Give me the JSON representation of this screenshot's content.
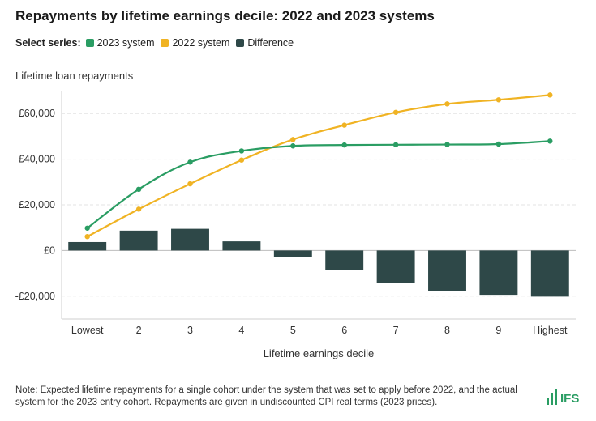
{
  "chart_data": {
    "type": "line+bar",
    "title": "Repayments by lifetime earnings decile: 2022 and 2023 systems",
    "legend_label": "Select series:",
    "ylabel": "Lifetime loan repayments",
    "xlabel": "Lifetime earnings decile",
    "categories": [
      "Lowest",
      "2",
      "3",
      "4",
      "5",
      "6",
      "7",
      "8",
      "9",
      "Highest"
    ],
    "ylim": [
      -30000,
      70000
    ],
    "yticks": [
      60000,
      40000,
      20000,
      0,
      -20000
    ],
    "ytick_labels": [
      "£60,000",
      "£40,000",
      "£20,000",
      "£0",
      "-£20,000"
    ],
    "grid": true,
    "series": [
      {
        "name": "2023 system",
        "type": "line",
        "color": "#2a9d63",
        "values": [
          9800,
          26800,
          38700,
          43600,
          45800,
          46200,
          46300,
          46400,
          46600,
          47900
        ]
      },
      {
        "name": "2022 system",
        "type": "line",
        "color": "#f0b323",
        "values": [
          6100,
          18100,
          29200,
          39600,
          48600,
          54900,
          60500,
          64200,
          66000,
          68100
        ]
      },
      {
        "name": "Difference",
        "type": "bar",
        "color": "#2e4848",
        "values": [
          3700,
          8700,
          9500,
          4000,
          -2800,
          -8700,
          -14200,
          -17800,
          -19400,
          -20200
        ]
      }
    ]
  },
  "note": "Note: Expected lifetime repayments for a single cohort under the system that was set to apply before 2022, and the actual system for the 2023 entry cohort. Repayments are given in undiscounted CPI real terms (2023 prices).",
  "logo_text": "IFS"
}
